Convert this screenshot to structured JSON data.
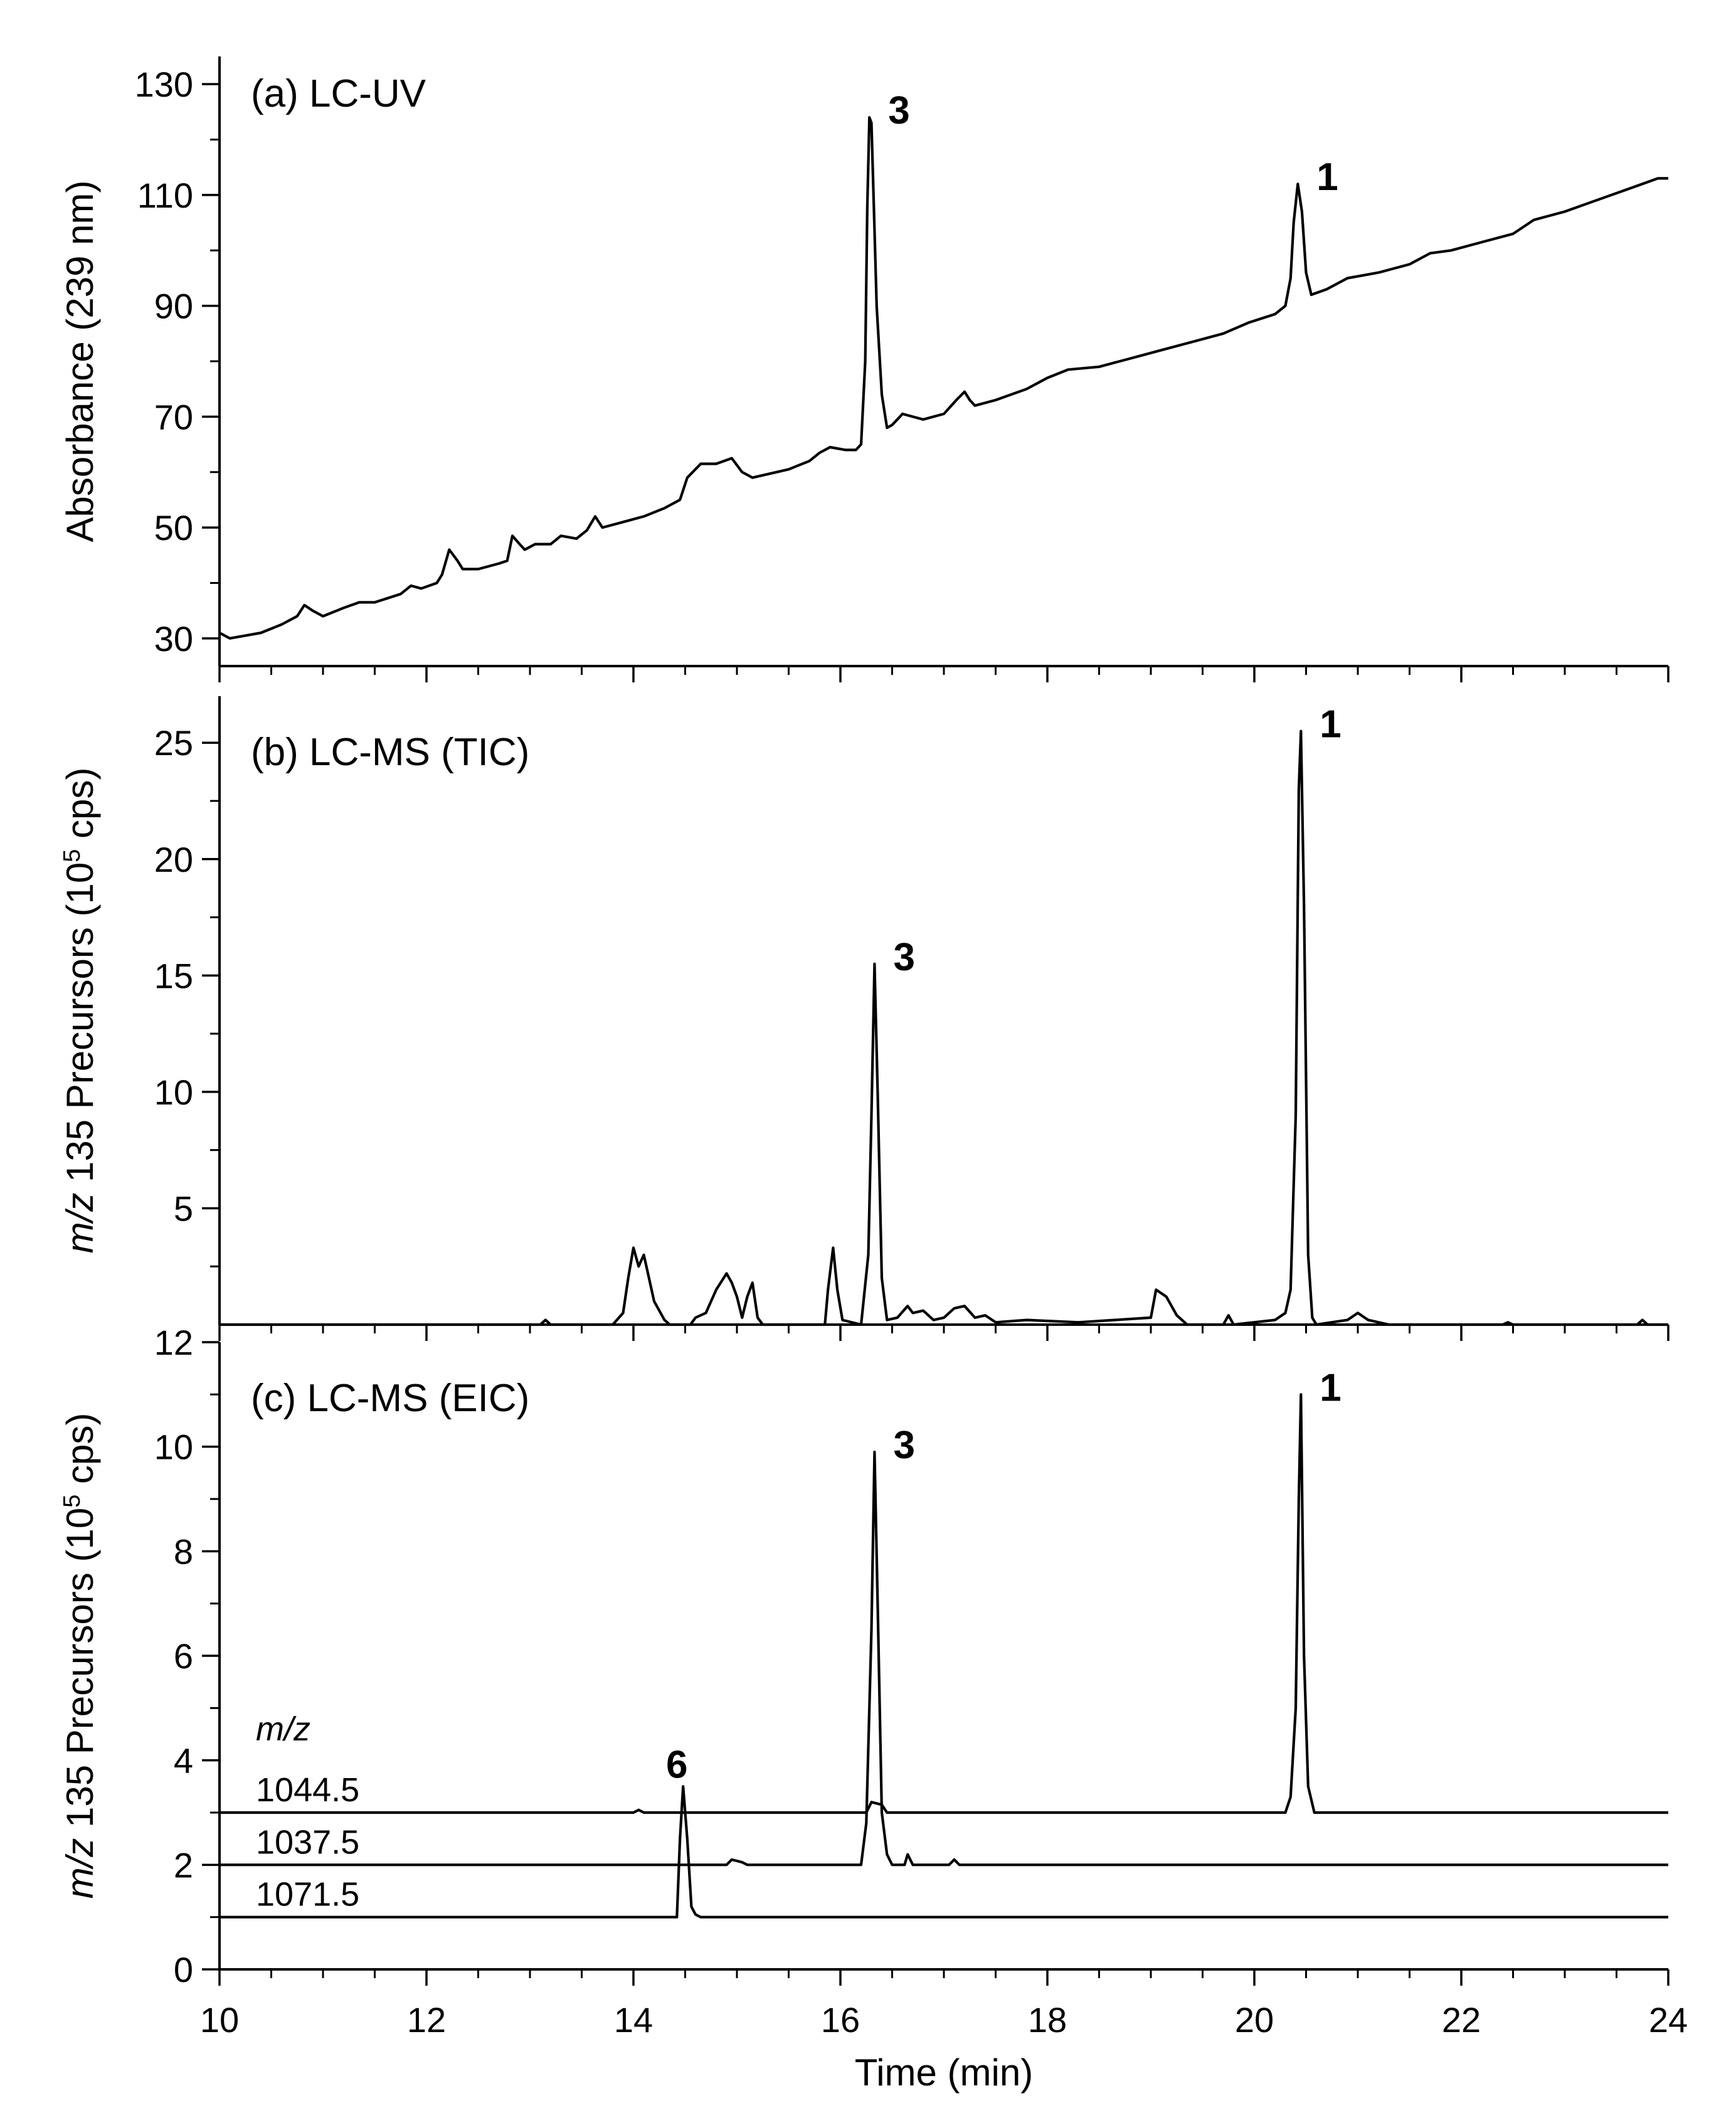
{
  "chart_data": [
    {
      "type": "line",
      "panel_label": "(a) LC-UV",
      "ylabel": "Absorbance (239 nm)",
      "xlabel": "Time (min)",
      "xlim": [
        10,
        24
      ],
      "ylim": [
        25,
        135
      ],
      "yticks": [
        30,
        50,
        70,
        90,
        110,
        130
      ],
      "series": [
        {
          "name": "LC-UV 239 nm",
          "points": [
            [
              10,
              31
            ],
            [
              10.1,
              30
            ],
            [
              10.4,
              31
            ],
            [
              10.6,
              32.5
            ],
            [
              10.75,
              34
            ],
            [
              10.82,
              36
            ],
            [
              10.9,
              35
            ],
            [
              11,
              34
            ],
            [
              11.2,
              35.5
            ],
            [
              11.35,
              36.5
            ],
            [
              11.5,
              36.5
            ],
            [
              11.75,
              38
            ],
            [
              11.85,
              39.5
            ],
            [
              11.95,
              39
            ],
            [
              12.1,
              40
            ],
            [
              12.15,
              41.5
            ],
            [
              12.22,
              46
            ],
            [
              12.3,
              44
            ],
            [
              12.35,
              42.5
            ],
            [
              12.5,
              42.5
            ],
            [
              12.7,
              43.5
            ],
            [
              12.78,
              44
            ],
            [
              12.83,
              48.5
            ],
            [
              12.9,
              47
            ],
            [
              12.95,
              46
            ],
            [
              13.05,
              47
            ],
            [
              13.2,
              47
            ],
            [
              13.3,
              48.5
            ],
            [
              13.45,
              48
            ],
            [
              13.55,
              49.5
            ],
            [
              13.63,
              52
            ],
            [
              13.7,
              50
            ],
            [
              13.9,
              51
            ],
            [
              14.1,
              52
            ],
            [
              14.3,
              53.5
            ],
            [
              14.45,
              55
            ],
            [
              14.52,
              59
            ],
            [
              14.65,
              61.5
            ],
            [
              14.8,
              61.5
            ],
            [
              14.95,
              62.5
            ],
            [
              15.05,
              60
            ],
            [
              15.15,
              59
            ],
            [
              15.5,
              60.5
            ],
            [
              15.7,
              62
            ],
            [
              15.8,
              63.5
            ],
            [
              15.9,
              64.5
            ],
            [
              16.05,
              64
            ],
            [
              16.15,
              64
            ],
            [
              16.2,
              65
            ],
            [
              16.24,
              80
            ],
            [
              16.26,
              108
            ],
            [
              16.28,
              124
            ],
            [
              16.3,
              123
            ],
            [
              16.32,
              110
            ],
            [
              16.35,
              90
            ],
            [
              16.4,
              74
            ],
            [
              16.45,
              68
            ],
            [
              16.5,
              68.5
            ],
            [
              16.6,
              70.5
            ],
            [
              16.7,
              70
            ],
            [
              16.8,
              69.5
            ],
            [
              17.0,
              70.5
            ],
            [
              17.12,
              73
            ],
            [
              17.2,
              74.5
            ],
            [
              17.25,
              73
            ],
            [
              17.3,
              72
            ],
            [
              17.5,
              73
            ],
            [
              17.8,
              75
            ],
            [
              18.0,
              77
            ],
            [
              18.2,
              78.5
            ],
            [
              18.5,
              79
            ],
            [
              18.8,
              80.5
            ],
            [
              19.1,
              82
            ],
            [
              19.4,
              83.5
            ],
            [
              19.7,
              85
            ],
            [
              19.95,
              87
            ],
            [
              20.2,
              88.5
            ],
            [
              20.3,
              90
            ],
            [
              20.35,
              95
            ],
            [
              20.38,
              105
            ],
            [
              20.42,
              112
            ],
            [
              20.46,
              107
            ],
            [
              20.5,
              96
            ],
            [
              20.55,
              92
            ],
            [
              20.7,
              93
            ],
            [
              20.9,
              95
            ],
            [
              21.2,
              96
            ],
            [
              21.5,
              97.5
            ],
            [
              21.7,
              99.5
            ],
            [
              21.9,
              100
            ],
            [
              22.2,
              101.5
            ],
            [
              22.5,
              103
            ],
            [
              22.7,
              105.5
            ],
            [
              23.0,
              107
            ],
            [
              23.3,
              109
            ],
            [
              23.6,
              111
            ],
            [
              23.9,
              113
            ],
            [
              24,
              113
            ]
          ]
        }
      ],
      "annotations": [
        {
          "text": "3",
          "x": 16.28,
          "y": 124
        },
        {
          "text": "1",
          "x": 20.42,
          "y": 112
        }
      ]
    },
    {
      "type": "line",
      "panel_label": "(b) LC-MS (TIC)",
      "ylabel_italic": "m/z",
      "ylabel": " 135 Precursors (10",
      "ylabel_exp": "5",
      "ylabel_end": " cps)",
      "xlabel": "Time (min)",
      "xlim": [
        10,
        24
      ],
      "ylim": [
        0,
        27
      ],
      "yticks": [
        5,
        10,
        15,
        20,
        25
      ],
      "series": [
        {
          "name": "TIC",
          "points": [
            [
              10,
              0
            ],
            [
              13.1,
              0
            ],
            [
              13.15,
              0.2
            ],
            [
              13.2,
              0
            ],
            [
              13.8,
              0
            ],
            [
              13.9,
              0.5
            ],
            [
              13.95,
              2
            ],
            [
              14.0,
              3.3
            ],
            [
              14.05,
              2.5
            ],
            [
              14.1,
              3.0
            ],
            [
              14.15,
              2.0
            ],
            [
              14.2,
              1.0
            ],
            [
              14.3,
              0.2
            ],
            [
              14.35,
              0
            ],
            [
              14.55,
              0
            ],
            [
              14.6,
              0.3
            ],
            [
              14.7,
              0.5
            ],
            [
              14.8,
              1.5
            ],
            [
              14.9,
              2.2
            ],
            [
              14.95,
              1.8
            ],
            [
              15.0,
              1.2
            ],
            [
              15.05,
              0.3
            ],
            [
              15.1,
              1.2
            ],
            [
              15.15,
              1.8
            ],
            [
              15.2,
              0.3
            ],
            [
              15.25,
              0
            ],
            [
              15.85,
              0
            ],
            [
              15.88,
              1.5
            ],
            [
              15.93,
              3.3
            ],
            [
              15.97,
              1.5
            ],
            [
              16.02,
              0.2
            ],
            [
              16.2,
              0
            ],
            [
              16.27,
              3
            ],
            [
              16.3,
              9
            ],
            [
              16.33,
              15.5
            ],
            [
              16.36,
              10
            ],
            [
              16.4,
              2
            ],
            [
              16.45,
              0.2
            ],
            [
              16.55,
              0.3
            ],
            [
              16.65,
              0.8
            ],
            [
              16.7,
              0.5
            ],
            [
              16.8,
              0.6
            ],
            [
              16.9,
              0.2
            ],
            [
              17.0,
              0.3
            ],
            [
              17.1,
              0.7
            ],
            [
              17.2,
              0.8
            ],
            [
              17.3,
              0.3
            ],
            [
              17.4,
              0.4
            ],
            [
              17.5,
              0.1
            ],
            [
              17.8,
              0.2
            ],
            [
              18.3,
              0.1
            ],
            [
              19.0,
              0.3
            ],
            [
              19.05,
              1.5
            ],
            [
              19.15,
              1.2
            ],
            [
              19.25,
              0.4
            ],
            [
              19.35,
              0
            ],
            [
              19.7,
              0
            ],
            [
              19.75,
              0.4
            ],
            [
              19.8,
              0
            ],
            [
              20.2,
              0.2
            ],
            [
              20.3,
              0.5
            ],
            [
              20.35,
              1.5
            ],
            [
              20.4,
              9
            ],
            [
              20.43,
              23
            ],
            [
              20.45,
              25.5
            ],
            [
              20.48,
              18
            ],
            [
              20.52,
              3
            ],
            [
              20.56,
              0.3
            ],
            [
              20.6,
              0
            ],
            [
              20.9,
              0.2
            ],
            [
              21.0,
              0.5
            ],
            [
              21.1,
              0.2
            ],
            [
              21.2,
              0.1
            ],
            [
              21.3,
              0
            ],
            [
              22.4,
              0
            ],
            [
              22.45,
              0.1
            ],
            [
              22.5,
              0
            ],
            [
              23.7,
              0
            ],
            [
              23.75,
              0.2
            ],
            [
              23.8,
              0
            ],
            [
              24,
              0
            ]
          ]
        }
      ],
      "annotations": [
        {
          "text": "3",
          "x": 16.33,
          "y": 15.5
        },
        {
          "text": "1",
          "x": 20.45,
          "y": 25.5
        }
      ]
    },
    {
      "type": "line",
      "panel_label": "(c) LC-MS (EIC)",
      "ylabel_italic": "m/z",
      "ylabel": " 135 Precursors (10",
      "ylabel_exp": "5",
      "ylabel_end": " cps)",
      "xlabel": "Time (min)",
      "xlim": [
        10,
        24
      ],
      "ylim": [
        0,
        12
      ],
      "yticks": [
        0,
        2,
        4,
        6,
        8,
        10,
        12
      ],
      "xticks": [
        10,
        12,
        14,
        16,
        18,
        20,
        22,
        24
      ],
      "legend_title": "m/z",
      "series": [
        {
          "name": "1044.5",
          "points": [
            [
              10,
              3
            ],
            [
              14.0,
              3
            ],
            [
              14.05,
              3.05
            ],
            [
              14.1,
              3
            ],
            [
              16.25,
              3
            ],
            [
              16.3,
              3.2
            ],
            [
              16.4,
              3.15
            ],
            [
              16.45,
              3
            ],
            [
              20.3,
              3
            ],
            [
              20.35,
              3.3
            ],
            [
              20.4,
              5
            ],
            [
              20.43,
              9
            ],
            [
              20.45,
              11
            ],
            [
              20.48,
              6
            ],
            [
              20.52,
              3.5
            ],
            [
              20.58,
              3
            ],
            [
              24,
              3
            ]
          ]
        },
        {
          "name": "1037.5",
          "points": [
            [
              10,
              2
            ],
            [
              14.9,
              2
            ],
            [
              14.95,
              2.1
            ],
            [
              15.05,
              2.05
            ],
            [
              15.1,
              2
            ],
            [
              16.2,
              2
            ],
            [
              16.25,
              2.8
            ],
            [
              16.3,
              6.5
            ],
            [
              16.33,
              9.9
            ],
            [
              16.36,
              7
            ],
            [
              16.4,
              3
            ],
            [
              16.45,
              2.2
            ],
            [
              16.5,
              2
            ],
            [
              16.62,
              2
            ],
            [
              16.65,
              2.2
            ],
            [
              16.7,
              2
            ],
            [
              17.05,
              2
            ],
            [
              17.1,
              2.1
            ],
            [
              17.15,
              2
            ],
            [
              24,
              2
            ]
          ]
        },
        {
          "name": "1071.5",
          "points": [
            [
              10,
              1
            ],
            [
              14.42,
              1
            ],
            [
              14.45,
              2.5
            ],
            [
              14.48,
              3.5
            ],
            [
              14.52,
              2.5
            ],
            [
              14.56,
              1.2
            ],
            [
              14.6,
              1.05
            ],
            [
              14.65,
              1
            ],
            [
              24,
              1
            ]
          ]
        }
      ],
      "annotations": [
        {
          "text": "3",
          "x": 16.33,
          "y": 9.9
        },
        {
          "text": "1",
          "x": 20.45,
          "y": 11
        },
        {
          "text": "6",
          "x": 14.48,
          "y": 3.5
        }
      ]
    }
  ]
}
